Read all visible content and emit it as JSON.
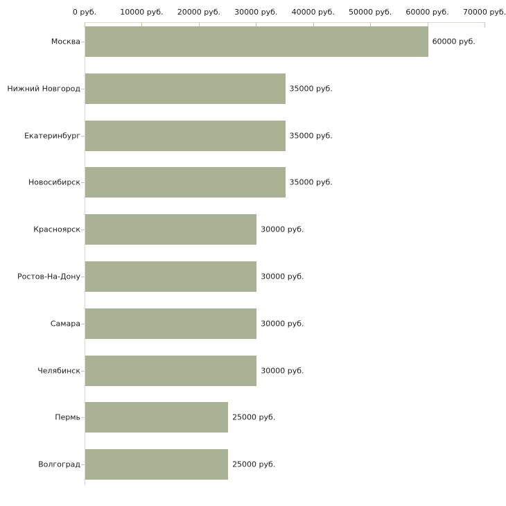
{
  "chart_data": {
    "type": "bar",
    "orientation": "horizontal",
    "title": "",
    "categories": [
      "Москва",
      "Нижний Новгород",
      "Екатеринбург",
      "Новосибирск",
      "Красноярск",
      "Ростов-На-Дону",
      "Самара",
      "Челябинск",
      "Пермь",
      "Волгоград"
    ],
    "values": [
      60000,
      35000,
      35000,
      35000,
      30000,
      30000,
      30000,
      30000,
      25000,
      25000
    ],
    "value_labels": [
      "60000 руб.",
      "35000 руб.",
      "35000 руб.",
      "35000 руб.",
      "30000 руб.",
      "30000 руб.",
      "30000 руб.",
      "30000 руб.",
      "25000 руб.",
      "25000 руб."
    ],
    "x_axis": {
      "position": "top",
      "xlim": [
        0,
        70000
      ],
      "ticks": [
        0,
        10000,
        20000,
        30000,
        40000,
        50000,
        60000,
        70000
      ],
      "tick_labels": [
        "0 руб.",
        "10000 руб.",
        "20000 руб.",
        "30000 руб.",
        "40000 руб.",
        "50000 руб.",
        "60000 руб.",
        "70000 руб."
      ]
    },
    "unit": "руб.",
    "grid": false,
    "legend": false,
    "colors": {
      "bar_fill": "#a9b295",
      "axis_line": "#d9d9cf",
      "tick_mark": "#c8c8a8",
      "text": "#1c1c1c",
      "background": "#ffffff"
    }
  }
}
